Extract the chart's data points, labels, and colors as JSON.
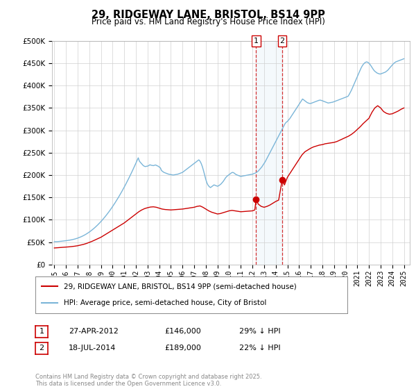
{
  "title": "29, RIDGEWAY LANE, BRISTOL, BS14 9PP",
  "subtitle": "Price paid vs. HM Land Registry's House Price Index (HPI)",
  "ylim": [
    0,
    500000
  ],
  "yticks": [
    0,
    50000,
    100000,
    150000,
    200000,
    250000,
    300000,
    350000,
    400000,
    450000,
    500000
  ],
  "legend_line1": "29, RIDGEWAY LANE, BRISTOL, BS14 9PP (semi-detached house)",
  "legend_line2": "HPI: Average price, semi-detached house, City of Bristol",
  "annotation1": {
    "label": "1",
    "date": "27-APR-2012",
    "price": "£146,000",
    "hpi": "29% ↓ HPI",
    "x_year": 2012.32,
    "y": 146000
  },
  "annotation2": {
    "label": "2",
    "date": "18-JUL-2014",
    "price": "£189,000",
    "hpi": "22% ↓ HPI",
    "x_year": 2014.55,
    "y": 189000
  },
  "copyright": "Contains HM Land Registry data © Crown copyright and database right 2025.\nThis data is licensed under the Open Government Licence v3.0.",
  "hpi_color": "#7ab5d8",
  "price_color": "#cc0000",
  "hpi_data": [
    [
      1995.0,
      51000
    ],
    [
      1995.1,
      51200
    ],
    [
      1995.2,
      51100
    ],
    [
      1995.3,
      51300
    ],
    [
      1995.4,
      51500
    ],
    [
      1995.5,
      51800
    ],
    [
      1995.6,
      52000
    ],
    [
      1995.7,
      52300
    ],
    [
      1995.8,
      52600
    ],
    [
      1995.9,
      52900
    ],
    [
      1996.0,
      53200
    ],
    [
      1996.1,
      53600
    ],
    [
      1996.2,
      54000
    ],
    [
      1996.3,
      54400
    ],
    [
      1996.4,
      54900
    ],
    [
      1996.5,
      55400
    ],
    [
      1996.6,
      56000
    ],
    [
      1996.7,
      56600
    ],
    [
      1996.8,
      57300
    ],
    [
      1996.9,
      58100
    ],
    [
      1997.0,
      59000
    ],
    [
      1997.1,
      60000
    ],
    [
      1997.2,
      61000
    ],
    [
      1997.3,
      62100
    ],
    [
      1997.4,
      63300
    ],
    [
      1997.5,
      64600
    ],
    [
      1997.6,
      66000
    ],
    [
      1997.7,
      67500
    ],
    [
      1997.8,
      69100
    ],
    [
      1997.9,
      70800
    ],
    [
      1998.0,
      72600
    ],
    [
      1998.1,
      74500
    ],
    [
      1998.2,
      76500
    ],
    [
      1998.3,
      78600
    ],
    [
      1998.4,
      80800
    ],
    [
      1998.5,
      83100
    ],
    [
      1998.6,
      85500
    ],
    [
      1998.7,
      88000
    ],
    [
      1998.8,
      90600
    ],
    [
      1998.9,
      93300
    ],
    [
      1999.0,
      96100
    ],
    [
      1999.1,
      99000
    ],
    [
      1999.2,
      102000
    ],
    [
      1999.3,
      105100
    ],
    [
      1999.4,
      108300
    ],
    [
      1999.5,
      111600
    ],
    [
      1999.6,
      115000
    ],
    [
      1999.7,
      118500
    ],
    [
      1999.8,
      122100
    ],
    [
      1999.9,
      125800
    ],
    [
      2000.0,
      129600
    ],
    [
      2000.1,
      133500
    ],
    [
      2000.2,
      137500
    ],
    [
      2000.3,
      141600
    ],
    [
      2000.4,
      145800
    ],
    [
      2000.5,
      150100
    ],
    [
      2000.6,
      154500
    ],
    [
      2000.7,
      159000
    ],
    [
      2000.8,
      163600
    ],
    [
      2000.9,
      168300
    ],
    [
      2001.0,
      173100
    ],
    [
      2001.1,
      178000
    ],
    [
      2001.2,
      183000
    ],
    [
      2001.3,
      188100
    ],
    [
      2001.4,
      193300
    ],
    [
      2001.5,
      198600
    ],
    [
      2001.6,
      204000
    ],
    [
      2001.7,
      209500
    ],
    [
      2001.8,
      215100
    ],
    [
      2001.9,
      220800
    ],
    [
      2002.0,
      226600
    ],
    [
      2002.1,
      232500
    ],
    [
      2002.2,
      238500
    ],
    [
      2002.3,
      231000
    ],
    [
      2002.4,
      228000
    ],
    [
      2002.5,
      225000
    ],
    [
      2002.6,
      222000
    ],
    [
      2002.7,
      220000
    ],
    [
      2002.8,
      219000
    ],
    [
      2002.9,
      219500
    ],
    [
      2003.0,
      220000
    ],
    [
      2003.1,
      221000
    ],
    [
      2003.2,
      223000
    ],
    [
      2003.3,
      222000
    ],
    [
      2003.4,
      221500
    ],
    [
      2003.5,
      221000
    ],
    [
      2003.6,
      222000
    ],
    [
      2003.7,
      222500
    ],
    [
      2003.8,
      221000
    ],
    [
      2003.9,
      220000
    ],
    [
      2004.0,
      218000
    ],
    [
      2004.1,
      216000
    ],
    [
      2004.2,
      210000
    ],
    [
      2004.3,
      208000
    ],
    [
      2004.4,
      206000
    ],
    [
      2004.5,
      205000
    ],
    [
      2004.6,
      204000
    ],
    [
      2004.7,
      203000
    ],
    [
      2004.8,
      202000
    ],
    [
      2004.9,
      201500
    ],
    [
      2005.0,
      201000
    ],
    [
      2005.1,
      200500
    ],
    [
      2005.2,
      200000
    ],
    [
      2005.3,
      200500
    ],
    [
      2005.4,
      201000
    ],
    [
      2005.5,
      201500
    ],
    [
      2005.6,
      202000
    ],
    [
      2005.7,
      203000
    ],
    [
      2005.8,
      204000
    ],
    [
      2005.9,
      205000
    ],
    [
      2006.0,
      206000
    ],
    [
      2006.1,
      208000
    ],
    [
      2006.2,
      210000
    ],
    [
      2006.3,
      212000
    ],
    [
      2006.4,
      214000
    ],
    [
      2006.5,
      216000
    ],
    [
      2006.6,
      218000
    ],
    [
      2006.7,
      220000
    ],
    [
      2006.8,
      222000
    ],
    [
      2006.9,
      224000
    ],
    [
      2007.0,
      226000
    ],
    [
      2007.1,
      228000
    ],
    [
      2007.2,
      230000
    ],
    [
      2007.3,
      232000
    ],
    [
      2007.4,
      234000
    ],
    [
      2007.5,
      231000
    ],
    [
      2007.6,
      226000
    ],
    [
      2007.7,
      219000
    ],
    [
      2007.8,
      210000
    ],
    [
      2007.9,
      200000
    ],
    [
      2008.0,
      190000
    ],
    [
      2008.1,
      182000
    ],
    [
      2008.2,
      177000
    ],
    [
      2008.3,
      174000
    ],
    [
      2008.4,
      172000
    ],
    [
      2008.5,
      174000
    ],
    [
      2008.6,
      176000
    ],
    [
      2008.7,
      178000
    ],
    [
      2008.8,
      177000
    ],
    [
      2008.9,
      176000
    ],
    [
      2009.0,
      175000
    ],
    [
      2009.1,
      176000
    ],
    [
      2009.2,
      178000
    ],
    [
      2009.3,
      180000
    ],
    [
      2009.4,
      183000
    ],
    [
      2009.5,
      186000
    ],
    [
      2009.6,
      190000
    ],
    [
      2009.7,
      194000
    ],
    [
      2009.8,
      197000
    ],
    [
      2009.9,
      199000
    ],
    [
      2010.0,
      201000
    ],
    [
      2010.1,
      203000
    ],
    [
      2010.2,
      205000
    ],
    [
      2010.3,
      206000
    ],
    [
      2010.4,
      205000
    ],
    [
      2010.5,
      203000
    ],
    [
      2010.6,
      201000
    ],
    [
      2010.7,
      200000
    ],
    [
      2010.8,
      199000
    ],
    [
      2010.9,
      198000
    ],
    [
      2011.0,
      197000
    ],
    [
      2011.1,
      197500
    ],
    [
      2011.2,
      198000
    ],
    [
      2011.3,
      198500
    ],
    [
      2011.4,
      199000
    ],
    [
      2011.5,
      199500
    ],
    [
      2011.6,
      200000
    ],
    [
      2011.7,
      200500
    ],
    [
      2011.8,
      201000
    ],
    [
      2011.9,
      201500
    ],
    [
      2012.0,
      202000
    ],
    [
      2012.1,
      203000
    ],
    [
      2012.2,
      204000
    ],
    [
      2012.3,
      205000
    ],
    [
      2012.4,
      207000
    ],
    [
      2012.5,
      209000
    ],
    [
      2012.6,
      212000
    ],
    [
      2012.7,
      215000
    ],
    [
      2012.8,
      218000
    ],
    [
      2012.9,
      222000
    ],
    [
      2013.0,
      226000
    ],
    [
      2013.1,
      230000
    ],
    [
      2013.2,
      235000
    ],
    [
      2013.3,
      240000
    ],
    [
      2013.4,
      245000
    ],
    [
      2013.5,
      250000
    ],
    [
      2013.6,
      255000
    ],
    [
      2013.7,
      260000
    ],
    [
      2013.8,
      265000
    ],
    [
      2013.9,
      270000
    ],
    [
      2014.0,
      275000
    ],
    [
      2014.1,
      280000
    ],
    [
      2014.2,
      285000
    ],
    [
      2014.3,
      290000
    ],
    [
      2014.4,
      295000
    ],
    [
      2014.5,
      300000
    ],
    [
      2014.6,
      305000
    ],
    [
      2014.7,
      310000
    ],
    [
      2014.8,
      315000
    ],
    [
      2014.9,
      318000
    ],
    [
      2015.0,
      320000
    ],
    [
      2015.1,
      323000
    ],
    [
      2015.2,
      326000
    ],
    [
      2015.3,
      330000
    ],
    [
      2015.4,
      334000
    ],
    [
      2015.5,
      338000
    ],
    [
      2015.6,
      342000
    ],
    [
      2015.7,
      346000
    ],
    [
      2015.8,
      350000
    ],
    [
      2015.9,
      354000
    ],
    [
      2016.0,
      358000
    ],
    [
      2016.1,
      362000
    ],
    [
      2016.2,
      366000
    ],
    [
      2016.3,
      370000
    ],
    [
      2016.4,
      368000
    ],
    [
      2016.5,
      366000
    ],
    [
      2016.6,
      364000
    ],
    [
      2016.7,
      362000
    ],
    [
      2016.8,
      361000
    ],
    [
      2016.9,
      360000
    ],
    [
      2017.0,
      360000
    ],
    [
      2017.1,
      361000
    ],
    [
      2017.2,
      362000
    ],
    [
      2017.3,
      363000
    ],
    [
      2017.4,
      364000
    ],
    [
      2017.5,
      365000
    ],
    [
      2017.6,
      366000
    ],
    [
      2017.7,
      367000
    ],
    [
      2017.8,
      367500
    ],
    [
      2017.9,
      367000
    ],
    [
      2018.0,
      366000
    ],
    [
      2018.1,
      365000
    ],
    [
      2018.2,
      364000
    ],
    [
      2018.3,
      363000
    ],
    [
      2018.4,
      362000
    ],
    [
      2018.5,
      361000
    ],
    [
      2018.6,
      361500
    ],
    [
      2018.7,
      362000
    ],
    [
      2018.8,
      362500
    ],
    [
      2018.9,
      363000
    ],
    [
      2019.0,
      364000
    ],
    [
      2019.1,
      365000
    ],
    [
      2019.2,
      366000
    ],
    [
      2019.3,
      367000
    ],
    [
      2019.4,
      368000
    ],
    [
      2019.5,
      369000
    ],
    [
      2019.6,
      370000
    ],
    [
      2019.7,
      371000
    ],
    [
      2019.8,
      372000
    ],
    [
      2019.9,
      373000
    ],
    [
      2020.0,
      374000
    ],
    [
      2020.1,
      375000
    ],
    [
      2020.2,
      376000
    ],
    [
      2020.3,
      380000
    ],
    [
      2020.4,
      385000
    ],
    [
      2020.5,
      390000
    ],
    [
      2020.6,
      396000
    ],
    [
      2020.7,
      402000
    ],
    [
      2020.8,
      408000
    ],
    [
      2020.9,
      414000
    ],
    [
      2021.0,
      420000
    ],
    [
      2021.1,
      426000
    ],
    [
      2021.2,
      432000
    ],
    [
      2021.3,
      438000
    ],
    [
      2021.4,
      443000
    ],
    [
      2021.5,
      447000
    ],
    [
      2021.6,
      450000
    ],
    [
      2021.7,
      452000
    ],
    [
      2021.8,
      453000
    ],
    [
      2021.9,
      452000
    ],
    [
      2022.0,
      450000
    ],
    [
      2022.1,
      447000
    ],
    [
      2022.2,
      443000
    ],
    [
      2022.3,
      439000
    ],
    [
      2022.4,
      435000
    ],
    [
      2022.5,
      432000
    ],
    [
      2022.6,
      430000
    ],
    [
      2022.7,
      428000
    ],
    [
      2022.8,
      427000
    ],
    [
      2022.9,
      426000
    ],
    [
      2023.0,
      426000
    ],
    [
      2023.1,
      427000
    ],
    [
      2023.2,
      428000
    ],
    [
      2023.3,
      429000
    ],
    [
      2023.4,
      430000
    ],
    [
      2023.5,
      432000
    ],
    [
      2023.6,
      434000
    ],
    [
      2023.7,
      437000
    ],
    [
      2023.8,
      440000
    ],
    [
      2023.9,
      443000
    ],
    [
      2024.0,
      446000
    ],
    [
      2024.1,
      449000
    ],
    [
      2024.2,
      451000
    ],
    [
      2024.3,
      453000
    ],
    [
      2024.4,
      454000
    ],
    [
      2024.5,
      455000
    ],
    [
      2024.6,
      456000
    ],
    [
      2024.7,
      457000
    ],
    [
      2024.8,
      458000
    ],
    [
      2024.9,
      459000
    ],
    [
      2025.0,
      460000
    ]
  ],
  "price_data": [
    [
      1995.0,
      37000
    ],
    [
      1995.25,
      37500
    ],
    [
      1995.5,
      38000
    ],
    [
      1995.75,
      38500
    ],
    [
      1996.0,
      39000
    ],
    [
      1996.25,
      39500
    ],
    [
      1996.5,
      40200
    ],
    [
      1996.75,
      41000
    ],
    [
      1997.0,
      42000
    ],
    [
      1997.25,
      43500
    ],
    [
      1997.5,
      45000
    ],
    [
      1997.75,
      47000
    ],
    [
      1998.0,
      49500
    ],
    [
      1998.25,
      52000
    ],
    [
      1998.5,
      55000
    ],
    [
      1998.75,
      58000
    ],
    [
      1999.0,
      61000
    ],
    [
      1999.25,
      65000
    ],
    [
      1999.5,
      69000
    ],
    [
      1999.75,
      73000
    ],
    [
      2000.0,
      77000
    ],
    [
      2000.25,
      81000
    ],
    [
      2000.5,
      85000
    ],
    [
      2000.75,
      89000
    ],
    [
      2001.0,
      93000
    ],
    [
      2001.25,
      98000
    ],
    [
      2001.5,
      103000
    ],
    [
      2001.75,
      108000
    ],
    [
      2002.0,
      113000
    ],
    [
      2002.25,
      118000
    ],
    [
      2002.5,
      122000
    ],
    [
      2002.75,
      125000
    ],
    [
      2003.0,
      127000
    ],
    [
      2003.25,
      128500
    ],
    [
      2003.5,
      129000
    ],
    [
      2003.75,
      128000
    ],
    [
      2004.0,
      126000
    ],
    [
      2004.25,
      124000
    ],
    [
      2004.5,
      123000
    ],
    [
      2004.75,
      122500
    ],
    [
      2005.0,
      122000
    ],
    [
      2005.25,
      122500
    ],
    [
      2005.5,
      123000
    ],
    [
      2005.75,
      123500
    ],
    [
      2006.0,
      124000
    ],
    [
      2006.25,
      125000
    ],
    [
      2006.5,
      126000
    ],
    [
      2006.75,
      127000
    ],
    [
      2007.0,
      128000
    ],
    [
      2007.25,
      130000
    ],
    [
      2007.5,
      131000
    ],
    [
      2007.75,
      128000
    ],
    [
      2008.0,
      124000
    ],
    [
      2008.25,
      120000
    ],
    [
      2008.5,
      117000
    ],
    [
      2008.75,
      115000
    ],
    [
      2009.0,
      113000
    ],
    [
      2009.25,
      114000
    ],
    [
      2009.5,
      116000
    ],
    [
      2009.75,
      118000
    ],
    [
      2010.0,
      120000
    ],
    [
      2010.25,
      121000
    ],
    [
      2010.5,
      120000
    ],
    [
      2010.75,
      119000
    ],
    [
      2011.0,
      118000
    ],
    [
      2011.25,
      118500
    ],
    [
      2011.5,
      119000
    ],
    [
      2011.75,
      119500
    ],
    [
      2012.0,
      120000
    ],
    [
      2012.1,
      121000
    ],
    [
      2012.2,
      122000
    ],
    [
      2012.32,
      146000
    ],
    [
      2012.5,
      135000
    ],
    [
      2012.75,
      130000
    ],
    [
      2013.0,
      128000
    ],
    [
      2013.25,
      130000
    ],
    [
      2013.5,
      133000
    ],
    [
      2013.75,
      137000
    ],
    [
      2014.0,
      141000
    ],
    [
      2014.25,
      144000
    ],
    [
      2014.55,
      189000
    ],
    [
      2014.75,
      178000
    ],
    [
      2015.0,
      195000
    ],
    [
      2015.25,
      205000
    ],
    [
      2015.5,
      215000
    ],
    [
      2015.75,
      225000
    ],
    [
      2016.0,
      235000
    ],
    [
      2016.25,
      245000
    ],
    [
      2016.5,
      252000
    ],
    [
      2016.75,
      256000
    ],
    [
      2017.0,
      260000
    ],
    [
      2017.25,
      263000
    ],
    [
      2017.5,
      265000
    ],
    [
      2017.75,
      267000
    ],
    [
      2018.0,
      268000
    ],
    [
      2018.25,
      270000
    ],
    [
      2018.5,
      271000
    ],
    [
      2018.75,
      272000
    ],
    [
      2019.0,
      273000
    ],
    [
      2019.25,
      275000
    ],
    [
      2019.5,
      278000
    ],
    [
      2019.75,
      281000
    ],
    [
      2020.0,
      284000
    ],
    [
      2020.25,
      287000
    ],
    [
      2020.5,
      291000
    ],
    [
      2020.75,
      296000
    ],
    [
      2021.0,
      302000
    ],
    [
      2021.25,
      308000
    ],
    [
      2021.5,
      315000
    ],
    [
      2021.75,
      321000
    ],
    [
      2022.0,
      327000
    ],
    [
      2022.25,
      340000
    ],
    [
      2022.5,
      350000
    ],
    [
      2022.75,
      355000
    ],
    [
      2023.0,
      350000
    ],
    [
      2023.25,
      342000
    ],
    [
      2023.5,
      338000
    ],
    [
      2023.75,
      336000
    ],
    [
      2024.0,
      337000
    ],
    [
      2024.25,
      340000
    ],
    [
      2024.5,
      343000
    ],
    [
      2024.75,
      347000
    ],
    [
      2025.0,
      350000
    ]
  ],
  "xlim": [
    1994.8,
    2025.5
  ],
  "xticks": [
    1995,
    1996,
    1997,
    1998,
    1999,
    2000,
    2001,
    2002,
    2003,
    2004,
    2005,
    2006,
    2007,
    2008,
    2009,
    2010,
    2011,
    2012,
    2013,
    2014,
    2015,
    2016,
    2017,
    2018,
    2019,
    2020,
    2021,
    2022,
    2023,
    2024,
    2025
  ]
}
